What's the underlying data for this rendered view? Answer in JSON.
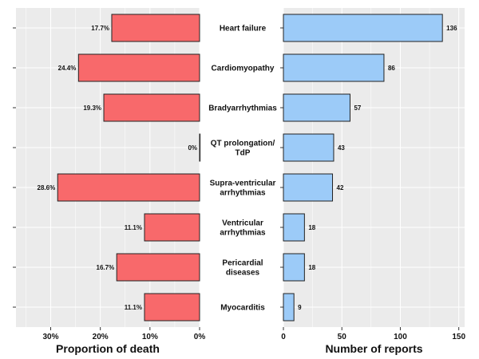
{
  "chart_data": [
    {
      "type": "bar",
      "orientation": "horizontal",
      "x_reversed": true,
      "categories": [
        "Heart failure",
        "Cardiomyopathy",
        "Bradyarrhythmias",
        "QT prolongation/ TdP",
        "Supra-ventricular arrhythmias",
        "Ventricular arrhythmias",
        "Pericardial diseases",
        "Myocarditis"
      ],
      "values": [
        17.7,
        24.4,
        19.3,
        0,
        28.6,
        11.1,
        16.7,
        11.1
      ],
      "value_labels": [
        "17.7%",
        "24.4%",
        "19.3%",
        "0%",
        "28.6%",
        "11.1%",
        "16.7%",
        "11.1%"
      ],
      "xlabel": "Proportion of death",
      "xlim": [
        0,
        37
      ],
      "xticks": [
        0,
        10,
        20,
        30
      ],
      "xtick_labels": [
        "0%",
        "10%",
        "20%",
        "30%"
      ],
      "bar_color": "#f8696b",
      "grid": true
    },
    {
      "type": "bar",
      "orientation": "horizontal",
      "categories": [
        "Heart failure",
        "Cardiomyopathy",
        "Bradyarrhythmias",
        "QT prolongation/ TdP",
        "Supra-ventricular arrhythmias",
        "Ventricular arrhythmias",
        "Pericardial diseases",
        "Myocarditis"
      ],
      "category_labels": [
        [
          "Heart failure"
        ],
        [
          "Cardiomyopathy"
        ],
        [
          "Bradyarrhythmias"
        ],
        [
          "QT prolongation/",
          "TdP"
        ],
        [
          "Supra-ventricular",
          "arrhythmias"
        ],
        [
          "Ventricular",
          "arrhythmias"
        ],
        [
          "Pericardial",
          "diseases"
        ],
        [
          "Myocarditis"
        ]
      ],
      "values": [
        136,
        86,
        57,
        43,
        42,
        18,
        18,
        9
      ],
      "value_labels": [
        "136",
        "86",
        "57",
        "43",
        "42",
        "18",
        "18",
        "9"
      ],
      "xlabel": "Number of reports",
      "xlim": [
        0,
        155
      ],
      "xticks": [
        0,
        50,
        100,
        150
      ],
      "xtick_labels": [
        "0",
        "50",
        "100",
        "150"
      ],
      "bar_color": "#9ccbf8",
      "grid": true
    }
  ],
  "colors": {
    "panel_background": "#ebebeb",
    "grid": "#ffffff",
    "bar_outline": "#222222"
  }
}
